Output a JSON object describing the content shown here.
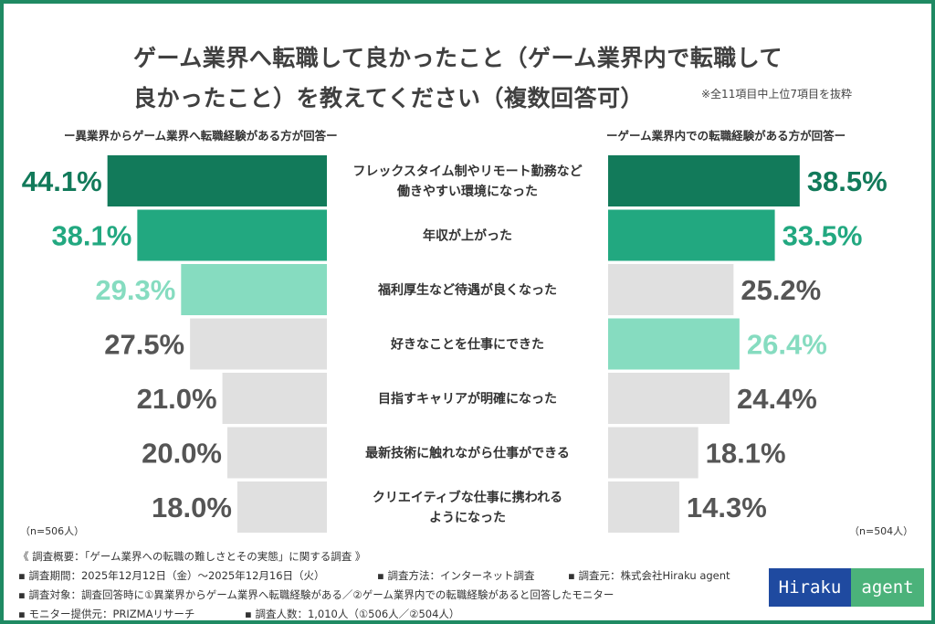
{
  "chart_data": {
    "type": "bar",
    "title_line1": "ゲーム業界へ転職して良かったこと（ゲーム業界内で転職して",
    "title_line2": "良かったこと）を教えてください（複数回答可）",
    "note": "※全11項目中上位7項目を抜粋",
    "categories": [
      "フレックスタイム制やリモート勤務など\n働きやすい環境になった",
      "年収が上がった",
      "福利厚生など待遇が良くなった",
      "好きなことを仕事にできた",
      "目指すキャリアが明確になった",
      "最新技術に触れながら仕事ができる",
      "クリエイティブな仕事に携われる\nようになった"
    ],
    "series": [
      {
        "name": "ー異業界からゲーム業界へ転職経験がある方が回答ー",
        "n": "（n=506人）",
        "values": [
          44.1,
          38.1,
          29.3,
          27.5,
          21.0,
          20.0,
          18.0
        ],
        "labels": [
          "44.1%",
          "38.1%",
          "29.3%",
          "27.5%",
          "21.0%",
          "20.0%",
          "18.0%"
        ]
      },
      {
        "name": "ーゲーム業界内での転職経験がある方が回答ー",
        "n": "（n=504人）",
        "values": [
          38.5,
          33.5,
          25.2,
          26.4,
          24.4,
          18.1,
          14.3
        ],
        "labels": [
          "38.5%",
          "33.5%",
          "25.2%",
          "26.4%",
          "24.4%",
          "18.1%",
          "14.3%"
        ]
      }
    ],
    "colors": {
      "rank1": "#127a5a",
      "rank2": "#22a880",
      "rank3": "#86dcc0",
      "other": "#e0e0e0",
      "other_text": "#555555"
    }
  },
  "footer": {
    "line1": "《 調査概要：「ゲーム業界への転職の難しさとその実態」に関する調査 》",
    "period": "▪ 調査期間：2025年12月12日（金）～2025年12月16日（火）",
    "method": "▪ 調査方法：インターネット調査",
    "source": "▪ 調査元：株式会社Hiraku agent",
    "target": "▪ 調査対象：調査回答時に①異業界からゲーム業界へ転職経験がある／②ゲーム業界内での転職経験があると回答したモニター",
    "provider": "▪ モニター提供元：PRIZMAリサーチ",
    "count": "▪ 調査人数：1,010人（①506人／②504人）"
  },
  "logo": {
    "part1": "Hiraku",
    "part2": "agent"
  }
}
